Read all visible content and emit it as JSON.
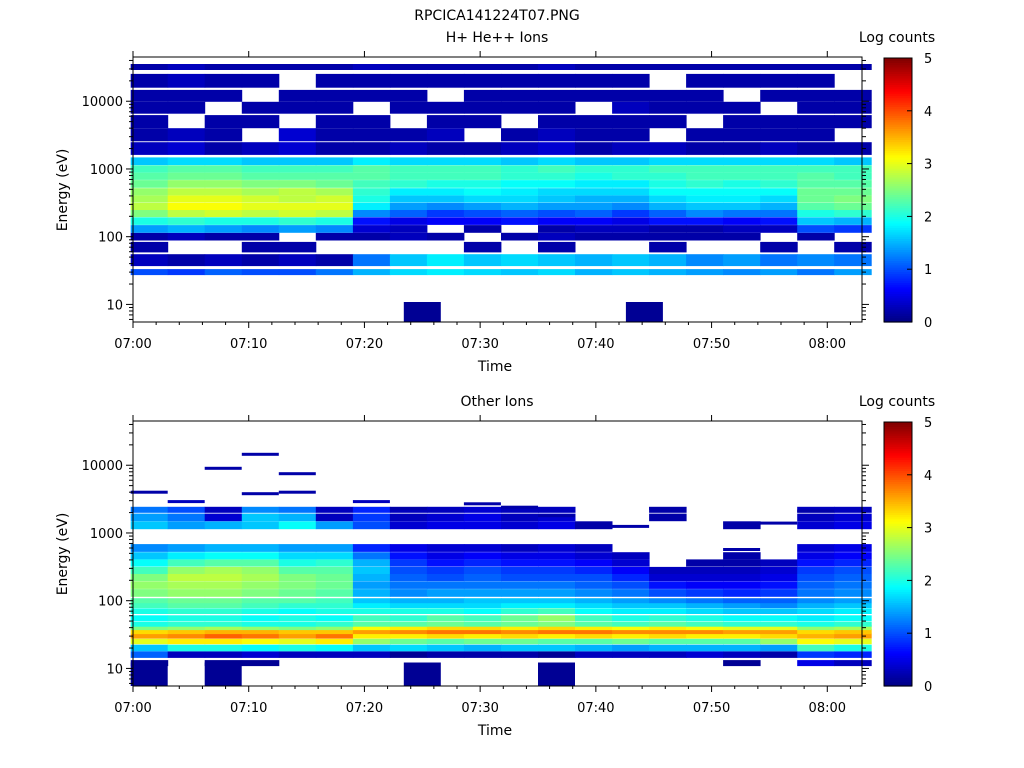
{
  "figure_title": "RPCICA141224T07.PNG",
  "chart_data": [
    {
      "type": "heatmap",
      "title": "H+ He++ Ions",
      "xlabel": "Time",
      "ylabel": "Energy (eV)",
      "colorbar_label": "Log counts",
      "x_ticks": [
        "07:00",
        "07:10",
        "07:20",
        "07:30",
        "07:40",
        "07:50",
        "08:00"
      ],
      "x_range_minutes": [
        0,
        63
      ],
      "y_ticks": [
        "10",
        "100",
        "1000",
        "10000"
      ],
      "y_scale": "log",
      "y_range": [
        5.5,
        45000
      ],
      "colorbar_ticks": [
        "0",
        "1",
        "2",
        "3",
        "4",
        "5"
      ],
      "color_range": [
        0,
        5
      ],
      "colormap": "jet",
      "time_bins_minutes": [
        1.4,
        4.6,
        7.8,
        11.0,
        14.2,
        17.4,
        20.6,
        23.8,
        27.0,
        30.2,
        33.4,
        36.6,
        39.8,
        43.0,
        46.2,
        49.4,
        52.6,
        55.8,
        59.0,
        62.2
      ],
      "energy_rows_eV": [
        30,
        45,
        70,
        100,
        130,
        170,
        220,
        280,
        360,
        460,
        600,
        780,
        1000,
        1300,
        2000,
        3200,
        5000,
        8000,
        12000,
        20000,
        32000
      ],
      "log_counts": [
        [
          1.0,
          0.9,
          1.1,
          1.0,
          1.0,
          1.2,
          1.5,
          1.7,
          1.8,
          1.7,
          1.6,
          1.7,
          1.5,
          1.6,
          1.5,
          1.4,
          1.3,
          1.4,
          1.2,
          1.4
        ],
        [
          0.3,
          0.2,
          0.3,
          0.2,
          0.3,
          0.2,
          1.2,
          1.6,
          1.8,
          1.6,
          1.7,
          1.6,
          1.5,
          1.6,
          1.5,
          1.3,
          1.4,
          1.2,
          1.3,
          1.2
        ],
        [
          0.2,
          0,
          0,
          0.2,
          0.2,
          0,
          0,
          0,
          0,
          0.2,
          0,
          0.2,
          0,
          0,
          0.2,
          0,
          0,
          0.2,
          0,
          0.2
        ],
        [
          0.2,
          0.3,
          0.2,
          0.2,
          0,
          0.2,
          0.2,
          0.3,
          0.2,
          0,
          0.2,
          0.3,
          0.2,
          0.2,
          0.2,
          0.2,
          0.2,
          0,
          0.2,
          0
        ],
        [
          1.4,
          1.5,
          1.4,
          1.3,
          1.4,
          1.3,
          0.4,
          0.3,
          0,
          0.2,
          0,
          0.2,
          0.3,
          0.3,
          0.2,
          0.2,
          0.3,
          0.3,
          1.0,
          0.9
        ],
        [
          2.0,
          2.1,
          2.0,
          2.0,
          2.1,
          2.0,
          0.7,
          0.5,
          0.6,
          0.6,
          0.7,
          0.6,
          0.6,
          0.5,
          0.7,
          0.7,
          0.6,
          0.7,
          1.6,
          1.5
        ],
        [
          2.5,
          2.8,
          2.9,
          2.8,
          2.9,
          2.8,
          1.3,
          1.1,
          0.9,
          1.0,
          1.1,
          1.0,
          1.1,
          0.9,
          1.1,
          1.3,
          1.2,
          1.2,
          2.0,
          2.1
        ],
        [
          2.8,
          3.1,
          3.1,
          3.0,
          3.0,
          3.0,
          1.8,
          1.4,
          1.3,
          1.4,
          1.5,
          1.4,
          1.4,
          1.3,
          1.5,
          1.6,
          1.6,
          1.5,
          2.3,
          2.4
        ],
        [
          2.7,
          3.0,
          3.0,
          2.9,
          2.8,
          2.9,
          2.0,
          1.6,
          1.6,
          1.7,
          1.7,
          1.6,
          1.5,
          1.5,
          1.7,
          1.8,
          1.8,
          1.7,
          2.4,
          2.5
        ],
        [
          2.6,
          2.8,
          2.8,
          2.7,
          2.8,
          2.7,
          2.1,
          1.8,
          1.8,
          1.9,
          1.8,
          1.7,
          1.7,
          1.7,
          1.9,
          1.9,
          1.9,
          1.9,
          2.4,
          2.4
        ],
        [
          2.4,
          2.6,
          2.6,
          2.5,
          2.5,
          2.4,
          2.2,
          2.1,
          2.0,
          2.0,
          1.9,
          1.9,
          1.8,
          1.8,
          2.0,
          2.1,
          2.0,
          2.1,
          2.3,
          2.3
        ],
        [
          2.3,
          2.4,
          2.4,
          2.3,
          2.3,
          2.3,
          2.3,
          2.2,
          2.2,
          2.2,
          2.1,
          2.1,
          2.0,
          2.1,
          2.1,
          2.2,
          2.2,
          2.2,
          2.3,
          2.2
        ],
        [
          2.2,
          2.3,
          2.3,
          2.2,
          2.2,
          2.2,
          2.3,
          2.2,
          2.2,
          2.2,
          2.1,
          2.2,
          2.1,
          2.1,
          2.2,
          2.2,
          2.2,
          2.2,
          2.2,
          2.2
        ],
        [
          1.6,
          1.7,
          1.7,
          1.6,
          1.6,
          1.6,
          1.8,
          1.7,
          1.7,
          1.7,
          1.6,
          1.7,
          1.6,
          1.6,
          1.7,
          1.7,
          1.7,
          1.7,
          1.7,
          1.6
        ],
        [
          0.3,
          0.4,
          0.2,
          0.3,
          0.4,
          0.2,
          0.2,
          0.3,
          0.2,
          0.2,
          0.3,
          0.4,
          0.2,
          0.3,
          0.3,
          0.2,
          0.2,
          0.3,
          0.2,
          0.2
        ],
        [
          0.2,
          0.3,
          0.2,
          0,
          0.4,
          0.2,
          0.2,
          0.2,
          0.3,
          0,
          0.2,
          0.3,
          0.2,
          0.2,
          0,
          0.2,
          0.2,
          0.2,
          0.2,
          0
        ],
        [
          0.2,
          0,
          0.2,
          0.2,
          0,
          0.2,
          0.2,
          0,
          0.2,
          0.2,
          0,
          0.2,
          0.2,
          0.2,
          0.2,
          0,
          0.2,
          0.2,
          0.2,
          0.2
        ],
        [
          0.2,
          0.2,
          0,
          0.2,
          0.2,
          0.2,
          0,
          0.2,
          0.2,
          0.2,
          0.2,
          0.2,
          0,
          0.3,
          0.2,
          0.2,
          0.2,
          0,
          0.2,
          0.2
        ],
        [
          0.2,
          0.2,
          0.2,
          0,
          0.2,
          0.2,
          0.2,
          0.2,
          0,
          0.2,
          0.2,
          0.2,
          0.2,
          0.2,
          0.2,
          0.2,
          0,
          0.2,
          0.2,
          0.2
        ],
        [
          0.2,
          0.3,
          0.2,
          0.2,
          0,
          0.2,
          0.2,
          0.2,
          0.2,
          0.2,
          0.2,
          0.2,
          0.2,
          0.2,
          0,
          0.2,
          0.2,
          0.2,
          0.2,
          0
        ],
        [
          0.2,
          0.3,
          0.2,
          0.2,
          0.2,
          0.2,
          0.3,
          0.2,
          0.2,
          0.2,
          0.2,
          0.3,
          0.2,
          0.2,
          0.2,
          0.2,
          0.2,
          0.2,
          0.2,
          0.2
        ]
      ],
      "low_energy_blocks": [
        {
          "time_min": 25.0,
          "energy_eV": 8,
          "value": 0.1
        },
        {
          "time_min": 44.2,
          "energy_eV": 8,
          "value": 0.1
        }
      ]
    },
    {
      "type": "heatmap",
      "title": "Other Ions",
      "xlabel": "Time",
      "ylabel": "Energy (eV)",
      "colorbar_label": "Log counts",
      "x_ticks": [
        "07:00",
        "07:10",
        "07:20",
        "07:30",
        "07:40",
        "07:50",
        "08:00"
      ],
      "x_range_minutes": [
        0,
        63
      ],
      "y_ticks": [
        "10",
        "100",
        "1000",
        "10000"
      ],
      "y_scale": "log",
      "y_range": [
        5.5,
        45000
      ],
      "colorbar_ticks": [
        "0",
        "1",
        "2",
        "3",
        "4",
        "5"
      ],
      "color_range": [
        0,
        5
      ],
      "colormap": "jet",
      "time_bins_minutes": [
        1.4,
        4.6,
        7.8,
        11.0,
        14.2,
        17.4,
        20.6,
        23.8,
        27.0,
        30.2,
        33.4,
        36.6,
        39.8,
        43.0,
        46.2,
        49.4,
        52.6,
        55.8,
        59.0,
        62.2
      ],
      "energy_rows_eV": [
        12,
        16,
        20,
        25,
        30,
        35,
        40,
        45,
        55,
        70,
        85,
        100,
        130,
        170,
        220,
        280,
        360,
        460,
        600,
        1300,
        1700,
        2200
      ],
      "log_counts": [
        [
          0.1,
          0,
          0.1,
          0.1,
          0,
          0,
          0,
          0,
          0,
          0,
          0,
          0,
          0,
          0,
          0,
          0,
          0.1,
          0,
          0.5,
          0.3
        ],
        [
          1.1,
          0.3,
          0.3,
          0.4,
          0.3,
          0.3,
          0.3,
          0.1,
          0.2,
          0.2,
          0.2,
          0.1,
          0.3,
          0.3,
          0.3,
          0.4,
          0.3,
          0.2,
          0.9,
          0.8
        ],
        [
          1.6,
          2.0,
          2.0,
          1.9,
          2.0,
          1.9,
          1.6,
          1.7,
          1.6,
          1.5,
          1.6,
          1.6,
          1.5,
          1.4,
          1.5,
          1.5,
          1.5,
          1.4,
          2.2,
          2.0
        ],
        [
          3.0,
          3.2,
          3.2,
          3.1,
          3.0,
          3.2,
          2.6,
          2.4,
          2.3,
          2.4,
          2.4,
          2.3,
          2.3,
          2.4,
          2.3,
          2.3,
          2.3,
          2.6,
          3.1,
          3.0
        ],
        [
          3.6,
          3.7,
          3.9,
          3.8,
          3.6,
          3.8,
          3.2,
          3.2,
          3.3,
          3.2,
          3.3,
          3.2,
          3.3,
          3.2,
          3.3,
          3.2,
          3.2,
          3.3,
          3.5,
          3.6
        ],
        [
          3.3,
          3.4,
          3.5,
          3.5,
          3.4,
          3.4,
          3.6,
          3.7,
          3.8,
          3.8,
          3.7,
          3.8,
          3.8,
          3.7,
          3.7,
          3.7,
          3.6,
          3.6,
          3.3,
          3.4
        ],
        [
          2.5,
          2.6,
          2.7,
          2.6,
          2.5,
          2.6,
          3.1,
          3.2,
          3.3,
          3.3,
          3.2,
          3.3,
          3.2,
          3.1,
          3.2,
          3.1,
          3.0,
          3.0,
          2.6,
          2.7
        ],
        [
          2.0,
          2.1,
          2.1,
          2.0,
          2.0,
          2.1,
          2.3,
          2.3,
          2.4,
          2.3,
          2.4,
          2.5,
          2.3,
          2.2,
          2.3,
          2.2,
          2.1,
          2.1,
          2.0,
          2.1
        ],
        [
          1.9,
          2.0,
          2.0,
          1.9,
          2.0,
          1.9,
          2.2,
          2.1,
          2.3,
          2.2,
          2.4,
          2.6,
          2.2,
          2.0,
          2.1,
          2.0,
          1.9,
          1.9,
          1.8,
          1.9
        ],
        [
          2.0,
          2.1,
          2.1,
          2.0,
          1.9,
          2.0,
          2.0,
          2.0,
          2.0,
          1.9,
          2.1,
          2.2,
          1.9,
          1.8,
          1.8,
          1.7,
          1.6,
          1.6,
          1.7,
          1.8
        ],
        [
          2.2,
          2.3,
          2.3,
          2.2,
          2.1,
          2.1,
          1.8,
          1.7,
          1.7,
          1.7,
          1.8,
          1.8,
          1.7,
          1.6,
          1.6,
          1.5,
          1.4,
          1.3,
          1.5,
          1.6
        ],
        [
          2.3,
          2.4,
          2.4,
          2.3,
          2.3,
          2.2,
          1.6,
          1.5,
          1.5,
          1.6,
          1.6,
          1.6,
          1.5,
          1.4,
          1.3,
          1.2,
          1.1,
          1.1,
          1.3,
          1.4
        ],
        [
          2.5,
          2.6,
          2.6,
          2.5,
          2.4,
          2.3,
          1.5,
          1.3,
          1.4,
          1.4,
          1.4,
          1.4,
          1.3,
          1.2,
          1.0,
          0.9,
          0.8,
          0.9,
          1.2,
          1.3
        ],
        [
          2.6,
          2.7,
          2.7,
          2.6,
          2.5,
          2.4,
          1.4,
          1.2,
          1.2,
          1.2,
          1.2,
          1.2,
          1.1,
          1.0,
          0.7,
          0.6,
          0.6,
          0.7,
          1.1,
          1.2
        ],
        [
          2.5,
          2.8,
          2.8,
          2.7,
          2.5,
          2.4,
          1.5,
          1.1,
          1.0,
          1.1,
          1.0,
          1.0,
          1.0,
          0.8,
          0.4,
          0.4,
          0.4,
          0.5,
          1.0,
          1.1
        ],
        [
          2.2,
          2.6,
          2.7,
          2.6,
          2.3,
          2.3,
          1.6,
          1.0,
          0.9,
          1.0,
          0.9,
          0.9,
          0.8,
          0.6,
          0.3,
          0.3,
          0.3,
          0.4,
          0.9,
          1.0
        ],
        [
          1.9,
          2.2,
          2.3,
          2.3,
          2.0,
          2.1,
          1.5,
          0.9,
          0.7,
          0.8,
          0.7,
          0.7,
          0.6,
          0.4,
          0,
          0.2,
          0.2,
          0.3,
          0.7,
          0.8
        ],
        [
          1.6,
          1.8,
          1.9,
          1.9,
          1.7,
          1.7,
          1.2,
          0.7,
          0.5,
          0.6,
          0.5,
          0.5,
          0.4,
          0.3,
          0,
          0,
          0.2,
          0,
          0.5,
          0.6
        ],
        [
          1.3,
          1.4,
          1.5,
          1.5,
          1.4,
          1.4,
          0.8,
          0.5,
          0.4,
          0.4,
          0.3,
          0.4,
          0.3,
          0,
          0,
          0,
          0,
          0,
          0.4,
          0.5
        ],
        [
          1.6,
          1.4,
          1.5,
          1.6,
          1.9,
          1.4,
          1.0,
          0.4,
          0.5,
          0.5,
          0.4,
          0.5,
          0.2,
          0,
          0,
          0,
          0.2,
          0,
          0.4,
          0.5
        ],
        [
          1.4,
          1.2,
          0.4,
          1.6,
          1.5,
          0.3,
          0.9,
          0.3,
          0.4,
          0.5,
          0.3,
          0.4,
          0,
          0,
          0.2,
          0,
          0,
          0,
          0.3,
          0.4
        ],
        [
          1.2,
          1.0,
          0.3,
          1.3,
          1.2,
          0.3,
          0.8,
          0.3,
          0.3,
          0.4,
          0.3,
          0.3,
          0,
          0,
          0.2,
          0,
          0,
          0,
          0.3,
          0.3
        ]
      ],
      "high_energy_sparse": [
        {
          "time_min": 11.0,
          "energy_eV": 14500,
          "value": 0.2
        },
        {
          "time_min": 7.8,
          "energy_eV": 9000,
          "value": 0.2
        },
        {
          "time_min": 14.2,
          "energy_eV": 7500,
          "value": 0.2
        },
        {
          "time_min": 1.4,
          "energy_eV": 4000,
          "value": 0.2
        },
        {
          "time_min": 11.0,
          "energy_eV": 3800,
          "value": 0.2
        },
        {
          "time_min": 14.2,
          "energy_eV": 4000,
          "value": 0.2
        },
        {
          "time_min": 4.6,
          "energy_eV": 2900,
          "value": 0.3
        },
        {
          "time_min": 20.6,
          "energy_eV": 2900,
          "value": 0.3
        },
        {
          "time_min": 30.2,
          "energy_eV": 2700,
          "value": 0.2
        },
        {
          "time_min": 23.8,
          "energy_eV": 2300,
          "value": 0.2
        },
        {
          "time_min": 33.4,
          "energy_eV": 2400,
          "value": 0.2
        },
        {
          "time_min": 46.2,
          "energy_eV": 2300,
          "value": 0.2
        },
        {
          "time_min": 59.0,
          "energy_eV": 2100,
          "value": 0.2
        },
        {
          "time_min": 36.6,
          "energy_eV": 1800,
          "value": 0.2
        },
        {
          "time_min": 43.0,
          "energy_eV": 1250,
          "value": 0.2
        },
        {
          "time_min": 55.8,
          "energy_eV": 1400,
          "value": 0.2
        },
        {
          "time_min": 52.6,
          "energy_eV": 570,
          "value": 0.2
        }
      ],
      "low_energy_blocks": [
        {
          "time_min": 1.4,
          "energy_eV": 9,
          "value": 0.1
        },
        {
          "time_min": 7.8,
          "energy_eV": 9,
          "value": 0.1
        },
        {
          "time_min": 25.0,
          "energy_eV": 9,
          "value": 0.1
        },
        {
          "time_min": 36.6,
          "energy_eV": 9,
          "value": 0.1
        }
      ]
    }
  ]
}
